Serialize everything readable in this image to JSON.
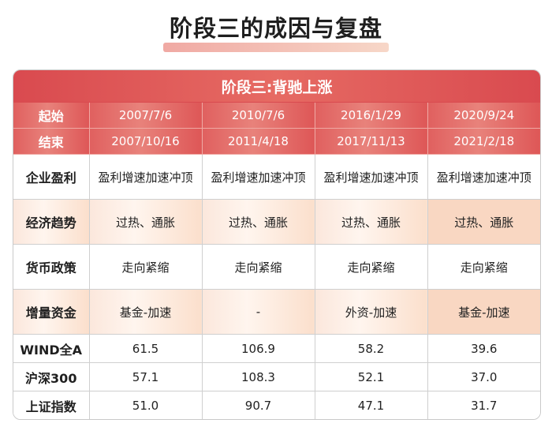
{
  "title": "阶段三的成因与复盘",
  "table": {
    "header": "阶段三:背驰上涨",
    "start": {
      "label": "起始",
      "values": [
        "2007/7/6",
        "2010/7/6",
        "2016/1/29",
        "2020/9/24"
      ]
    },
    "end": {
      "label": "结束",
      "values": [
        "2007/10/16",
        "2011/4/18",
        "2017/11/13",
        "2021/2/18"
      ]
    },
    "rows": [
      {
        "label": "企业盈利",
        "values": [
          "盈利增速加速冲顶",
          "盈利增速加速冲顶",
          "盈利增速加速冲顶",
          "盈利增速加速冲顶"
        ]
      },
      {
        "label": "经济趋势",
        "values": [
          "过热、通胀",
          "过热、通胀",
          "过热、通胀",
          "过热、通胀"
        ]
      },
      {
        "label": "货币政策",
        "values": [
          "走向紧缩",
          "走向紧缩",
          "走向紧缩",
          "走向紧缩"
        ]
      },
      {
        "label": "增量资金",
        "values": [
          "基金-加速",
          "-",
          "外资-加速",
          "基金-加速"
        ]
      },
      {
        "label": "WIND全A",
        "values": [
          "61.5",
          "106.9",
          "58.2",
          "39.6"
        ]
      },
      {
        "label": "沪深300",
        "values": [
          "57.1",
          "108.3",
          "52.1",
          "37.0"
        ]
      },
      {
        "label": "上证指数",
        "values": [
          "51.0",
          "90.7",
          "47.1",
          "31.7"
        ]
      }
    ]
  },
  "colors": {
    "accent_red": "#d94a4f",
    "peach": "#fbe7dc",
    "title_underline": "#f0a9a3"
  }
}
